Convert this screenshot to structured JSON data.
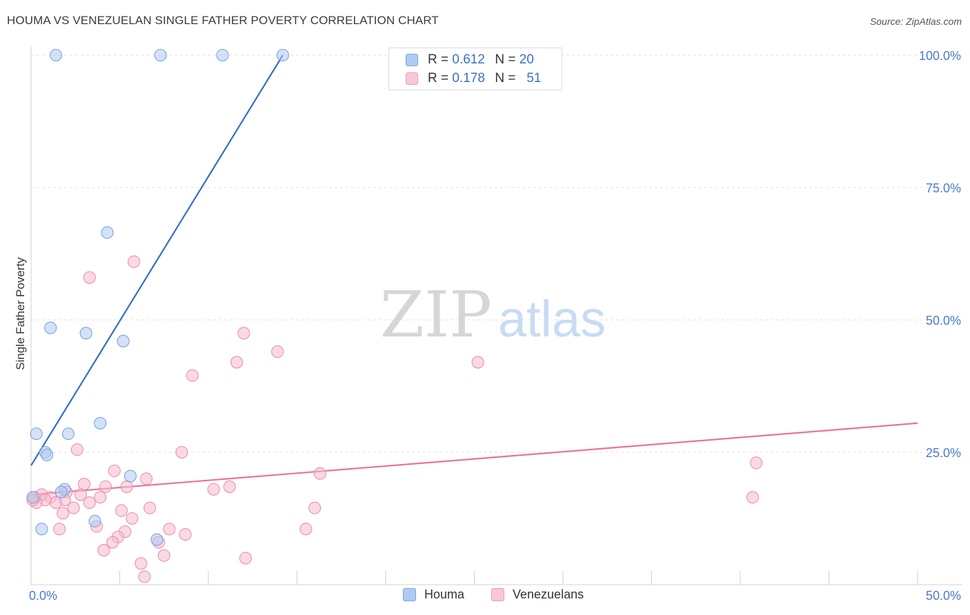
{
  "header": {
    "title": "HOUMA VS VENEZUELAN SINGLE FATHER POVERTY CORRELATION CHART",
    "source": "Source: ZipAtlas.com"
  },
  "watermark": {
    "zip": "ZIP",
    "atlas": "atlas"
  },
  "legend": {
    "houma": {
      "r_label": "R =",
      "r_value": "0.612",
      "n_label": "N =",
      "n_value": "20"
    },
    "venezuelans": {
      "r_label": "R =",
      "r_value": "0.178",
      "n_label": "N =",
      "n_value": "51"
    }
  },
  "bottom_legend": {
    "houma": "Houma",
    "venezuelans": "Venezuelans"
  },
  "colors": {
    "houma_fill": "#aecbf2",
    "houma_stroke": "#7aa3d9",
    "houma_line": "#2f6fc8",
    "ven_fill": "#f7b9cc",
    "ven_stroke": "#eb8fae",
    "ven_line": "#e8739b",
    "tick_text": "#4a7cc9",
    "grid": "#e2e2e2"
  },
  "chart_data": {
    "type": "scatter",
    "title": "HOUMA VS VENEZUELAN SINGLE FATHER POVERTY CORRELATION CHART",
    "xlabel": "",
    "ylabel": "Single Father Poverty",
    "xlim": [
      0,
      50
    ],
    "ylim": [
      0,
      103
    ],
    "x_tick_labels": [
      "0.0%",
      "50.0%"
    ],
    "y_ticks": [
      25,
      50,
      75,
      100
    ],
    "y_tick_labels": [
      "25.0%",
      "50.0%",
      "75.0%",
      "100.0%"
    ],
    "grid": true,
    "series": [
      {
        "name": "Houma",
        "R": 0.612,
        "N": 20,
        "points": [
          [
            1.4,
            100
          ],
          [
            7.3,
            100
          ],
          [
            10.8,
            100
          ],
          [
            14.2,
            100
          ],
          [
            4.3,
            66.5
          ],
          [
            1.1,
            48.5
          ],
          [
            3.1,
            47.5
          ],
          [
            5.2,
            46
          ],
          [
            3.9,
            30.5
          ],
          [
            0.3,
            28.5
          ],
          [
            2.1,
            28.5
          ],
          [
            0.8,
            25
          ],
          [
            0.9,
            24.5
          ],
          [
            5.6,
            20.5
          ],
          [
            1.9,
            18
          ],
          [
            1.7,
            17.5
          ],
          [
            0.1,
            16.5
          ],
          [
            3.6,
            12
          ],
          [
            0.6,
            10.5
          ],
          [
            7.1,
            8.5
          ]
        ],
        "trend": {
          "x": [
            0,
            14.2
          ],
          "y": [
            22.5,
            100
          ]
        }
      },
      {
        "name": "Venezuelans",
        "R": 0.178,
        "N": 51,
        "points": [
          [
            5.8,
            61
          ],
          [
            3.3,
            58
          ],
          [
            12,
            47.5
          ],
          [
            13.9,
            44
          ],
          [
            11.6,
            42
          ],
          [
            25.2,
            42
          ],
          [
            9.1,
            39.5
          ],
          [
            2.6,
            25.5
          ],
          [
            8.5,
            25
          ],
          [
            40.9,
            23
          ],
          [
            4.7,
            21.5
          ],
          [
            16.3,
            21
          ],
          [
            6.5,
            20
          ],
          [
            3.0,
            19
          ],
          [
            11.2,
            18.5
          ],
          [
            4.2,
            18.5
          ],
          [
            5.4,
            18.5
          ],
          [
            10.3,
            18
          ],
          [
            2.0,
            17.5
          ],
          [
            2.8,
            17
          ],
          [
            3.9,
            16.5
          ],
          [
            0.2,
            16.5
          ],
          [
            0.6,
            17
          ],
          [
            1.1,
            16.5
          ],
          [
            1.9,
            16
          ],
          [
            0.8,
            16
          ],
          [
            0.3,
            15.5
          ],
          [
            1.4,
            15.5
          ],
          [
            3.3,
            15.5
          ],
          [
            40.7,
            16.5
          ],
          [
            2.4,
            14.5
          ],
          [
            6.7,
            14.5
          ],
          [
            16.0,
            14.5
          ],
          [
            5.1,
            14
          ],
          [
            1.8,
            13.5
          ],
          [
            5.7,
            12.5
          ],
          [
            3.7,
            11
          ],
          [
            1.6,
            10.5
          ],
          [
            7.8,
            10.5
          ],
          [
            15.5,
            10.5
          ],
          [
            5.3,
            10
          ],
          [
            8.7,
            9.5
          ],
          [
            4.9,
            9
          ],
          [
            4.6,
            8
          ],
          [
            7.2,
            8
          ],
          [
            4.1,
            6.5
          ],
          [
            7.5,
            5.5
          ],
          [
            12.1,
            5
          ],
          [
            6.2,
            4
          ],
          [
            6.4,
            1.5
          ],
          [
            0.1,
            16
          ]
        ],
        "trend": {
          "x": [
            0,
            50
          ],
          "y": [
            17,
            30.5
          ]
        }
      }
    ]
  }
}
